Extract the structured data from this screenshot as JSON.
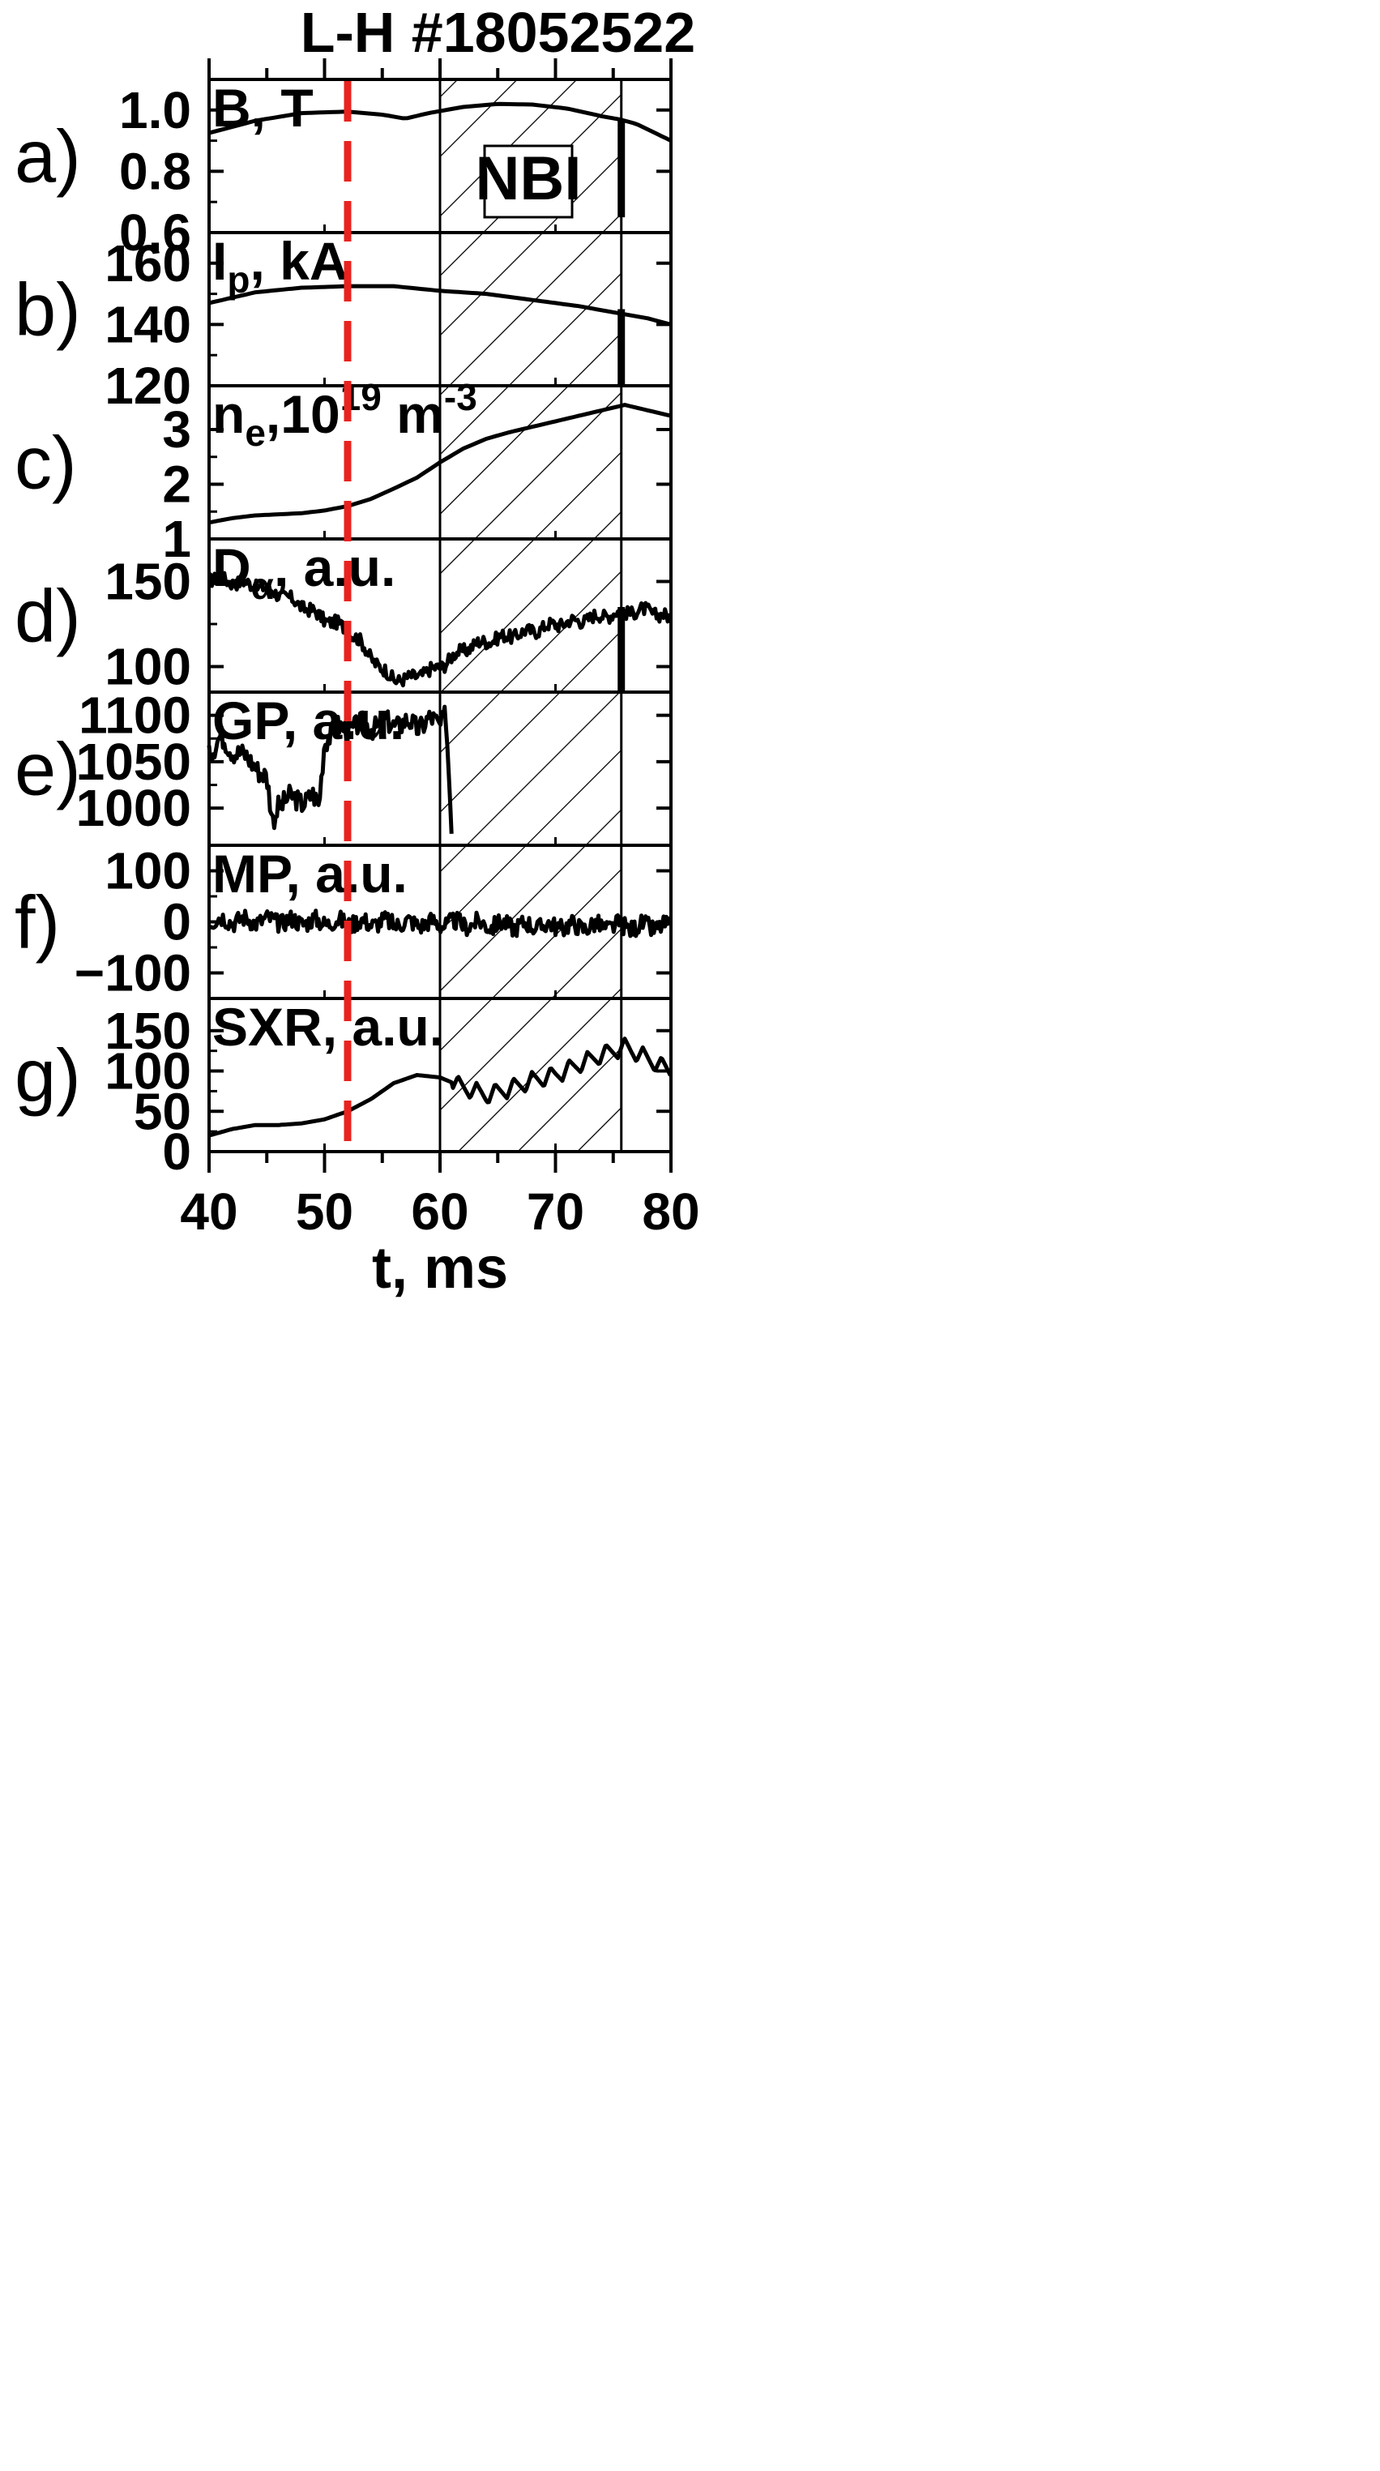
{
  "figure": {
    "shot_label": "#18052522",
    "event_label": "L-H",
    "nbi_label": "NBI",
    "x_title": "t, ms",
    "x_ticks": [
      "40",
      "50",
      "60",
      "70",
      "80"
    ]
  },
  "colors": {
    "lh_line": "#e8231f",
    "trace": "#000000",
    "frame": "#000000"
  },
  "chart_data": {
    "type": "line",
    "x_range": [
      40,
      80
    ],
    "x_unit": "ms",
    "lh_time": 52,
    "nbi_window": [
      60,
      75.7
    ],
    "grid": false,
    "panels": [
      {
        "tag": "a)",
        "label_main": "B, T",
        "label_sub": "",
        "label_rest": "",
        "ylim": [
          0.6,
          1.1
        ],
        "tick_values": [
          0.6,
          0.8,
          1.0
        ],
        "tick_labels": [
          "0.6",
          "0.8",
          "1.0"
        ],
        "series": {
          "x": [
            40,
            44,
            48,
            52,
            55,
            57,
            59,
            62,
            65,
            68,
            71,
            74,
            75.5,
            77,
            80
          ],
          "y": [
            0.925,
            0.965,
            0.99,
            0.995,
            0.985,
            0.972,
            0.99,
            1.01,
            1.02,
            1.018,
            1.005,
            0.98,
            0.97,
            0.955,
            0.9
          ]
        },
        "spike": {
          "x": 75.7,
          "y0": 0.65,
          "y1": 0.97
        }
      },
      {
        "tag": "b)",
        "label_main": "I",
        "label_sub": "p",
        "label_rest": ", kA",
        "ylim": [
          120,
          170
        ],
        "tick_values": [
          120,
          140,
          160
        ],
        "tick_labels": [
          "120",
          "140",
          "160"
        ],
        "series": {
          "x": [
            40,
            44,
            48,
            52,
            56,
            60,
            64,
            68,
            72,
            75,
            78,
            80
          ],
          "y": [
            147,
            150.5,
            152,
            152.5,
            152.5,
            151,
            150,
            148,
            146,
            144,
            142,
            140
          ]
        },
        "spike": {
          "x": 75.7,
          "y0": 120,
          "y1": 145
        }
      },
      {
        "tag": "c)",
        "label_main": "n",
        "label_sub": "e",
        "label_rest": ",10",
        "label_sup": "19",
        "label_rest2": " m",
        "label_sup2": "-3",
        "ylim": [
          1,
          3.8
        ],
        "tick_values": [
          1,
          2,
          3
        ],
        "tick_labels": [
          "1",
          "2",
          "3"
        ],
        "series": {
          "x": [
            40,
            42,
            44,
            46,
            48,
            50,
            52,
            54,
            56,
            58,
            60,
            62,
            64,
            66,
            68,
            70,
            72,
            74,
            76,
            78,
            80
          ],
          "y": [
            1.3,
            1.38,
            1.43,
            1.45,
            1.47,
            1.52,
            1.6,
            1.73,
            1.92,
            2.12,
            2.4,
            2.65,
            2.83,
            2.95,
            3.05,
            3.15,
            3.25,
            3.35,
            3.45,
            3.35,
            3.25
          ]
        }
      },
      {
        "tag": "d)",
        "label_main": "D",
        "label_sub": "α",
        "label_rest": ", a.u.",
        "ylim": [
          85,
          175
        ],
        "tick_values": [
          100,
          150
        ],
        "tick_labels": [
          "100",
          "150"
        ],
        "series": {
          "x": [
            40,
            42,
            44,
            46,
            48,
            50,
            52,
            53,
            54,
            55,
            56,
            57,
            58,
            59,
            60,
            62,
            64,
            66,
            68,
            70,
            72,
            74,
            76,
            78,
            80
          ],
          "y": [
            152,
            150,
            148,
            143,
            136,
            128,
            122,
            115,
            106,
            98,
            93,
            92,
            95,
            97,
            100,
            110,
            115,
            118,
            121,
            125,
            127,
            130,
            132,
            133,
            128
          ]
        },
        "noise": 4,
        "spike": {
          "x": 75.7,
          "y0": 85,
          "y1": 135
        }
      },
      {
        "tag": "e)",
        "label_main": "GP, a.u.",
        "label_sub": "",
        "label_rest": "",
        "ylim": [
          960,
          1125
        ],
        "tick_values": [
          1000,
          1050,
          1100
        ],
        "tick_labels": [
          "1000",
          "1050",
          "1100"
        ],
        "series": {
          "x": [
            40,
            41,
            43,
            44,
            45,
            45.5,
            46,
            47,
            48,
            49,
            49.5,
            50,
            51,
            53,
            55,
            57,
            58,
            59,
            60,
            60.5,
            61
          ],
          "y": [
            1060,
            1075,
            1055,
            1048,
            1030,
            985,
            1005,
            1010,
            1008,
            1012,
            1000,
            1075,
            1085,
            1088,
            1090,
            1092,
            1088,
            1095,
            1090,
            1105,
            980
          ]
        },
        "noise": 12
      },
      {
        "tag": "f)",
        "label_main": "MP, a.u.",
        "label_sub": "",
        "label_rest": "",
        "ylim": [
          -150,
          150
        ],
        "tick_values": [
          -100,
          0,
          100
        ],
        "tick_labels": [
          "−100",
          "0",
          "100"
        ],
        "series": {
          "x": [
            40,
            50,
            60,
            70,
            80
          ],
          "y": [
            5,
            0,
            -3,
            -8,
            -10
          ]
        },
        "noise": 18
      },
      {
        "tag": "g)",
        "label_main": "SXR, a.u.",
        "label_sub": "",
        "label_rest": "",
        "ylim": [
          0,
          190
        ],
        "tick_values": [
          0,
          50,
          100,
          150
        ],
        "tick_labels": [
          "0",
          "50",
          "100",
          "150"
        ],
        "series": {
          "x": [
            40,
            42,
            44,
            46,
            48,
            50,
            52,
            54,
            56,
            58,
            60,
            62,
            64,
            66,
            68,
            70,
            72,
            74,
            76,
            78,
            80
          ],
          "y": [
            20,
            28,
            33,
            33,
            35,
            40,
            50,
            65,
            85,
            95,
            92,
            80,
            70,
            78,
            88,
            95,
            108,
            120,
            130,
            115,
            100
          ]
        },
        "osc": {
          "start": 61,
          "amp": 22,
          "period": 1.6
        }
      }
    ]
  }
}
